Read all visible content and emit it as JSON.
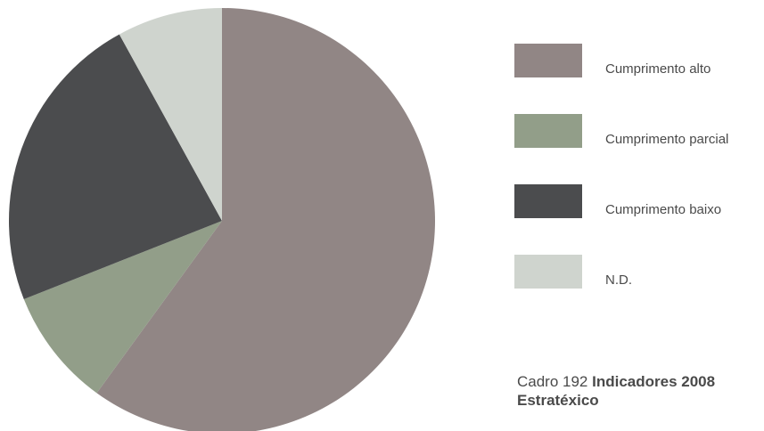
{
  "chart_data": {
    "type": "pie",
    "series": [
      {
        "label": "Cumprimento alto",
        "value": 60,
        "color": "#918685"
      },
      {
        "label": "Cumprimento parcial",
        "value": 9,
        "color": "#929e89"
      },
      {
        "label": "Cumprimento baixo",
        "value": 23,
        "color": "#4b4c4e"
      },
      {
        "label": "N.D.",
        "value": 8,
        "color": "#cfd4ce"
      }
    ],
    "legend_position": "right"
  },
  "caption": {
    "prefix": "Cadro 192",
    "title": "Indicadores 2008 Estratéxico"
  }
}
